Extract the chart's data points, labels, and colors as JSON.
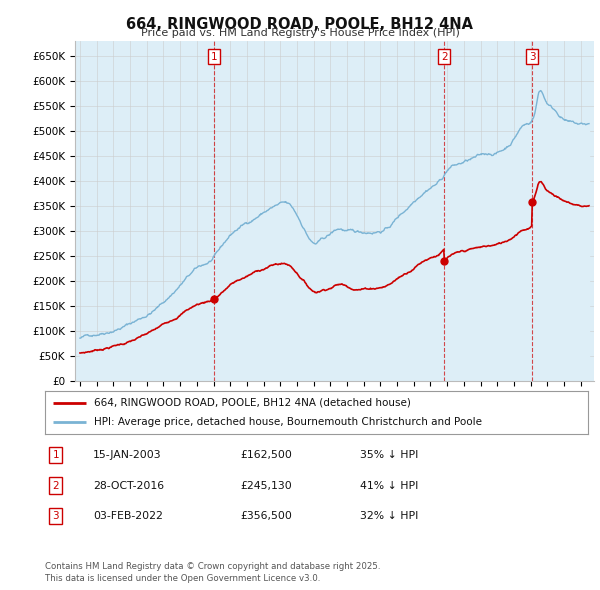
{
  "title": "664, RINGWOOD ROAD, POOLE, BH12 4NA",
  "subtitle": "Price paid vs. HM Land Registry's House Price Index (HPI)",
  "legend_line1": "664, RINGWOOD ROAD, POOLE, BH12 4NA (detached house)",
  "legend_line2": "HPI: Average price, detached house, Bournemouth Christchurch and Poole",
  "footer": "Contains HM Land Registry data © Crown copyright and database right 2025.\nThis data is licensed under the Open Government Licence v3.0.",
  "transactions": [
    {
      "label": "1",
      "date": "15-JAN-2003",
      "price": "£162,500",
      "pct": "35% ↓ HPI",
      "x_year": 2003.04
    },
    {
      "label": "2",
      "date": "28-OCT-2016",
      "price": "£245,130",
      "pct": "41% ↓ HPI",
      "x_year": 2016.82
    },
    {
      "label": "3",
      "date": "03-FEB-2022",
      "price": "£356,500",
      "pct": "32% ↓ HPI",
      "x_year": 2022.09
    }
  ],
  "red_color": "#cc0000",
  "blue_color": "#7ab3d4",
  "blue_fill": "#ddeef7",
  "background_color": "#ffffff",
  "grid_color": "#cccccc",
  "ylim": [
    0,
    680000
  ],
  "xlim_start": 1994.7,
  "xlim_end": 2025.8,
  "yticks": [
    0,
    50000,
    100000,
    150000,
    200000,
    250000,
    300000,
    350000,
    400000,
    450000,
    500000,
    550000,
    600000,
    650000
  ],
  "ytick_labels": [
    "£0",
    "£50K",
    "£100K",
    "£150K",
    "£200K",
    "£250K",
    "£300K",
    "£350K",
    "£400K",
    "£450K",
    "£500K",
    "£550K",
    "£600K",
    "£650K"
  ]
}
